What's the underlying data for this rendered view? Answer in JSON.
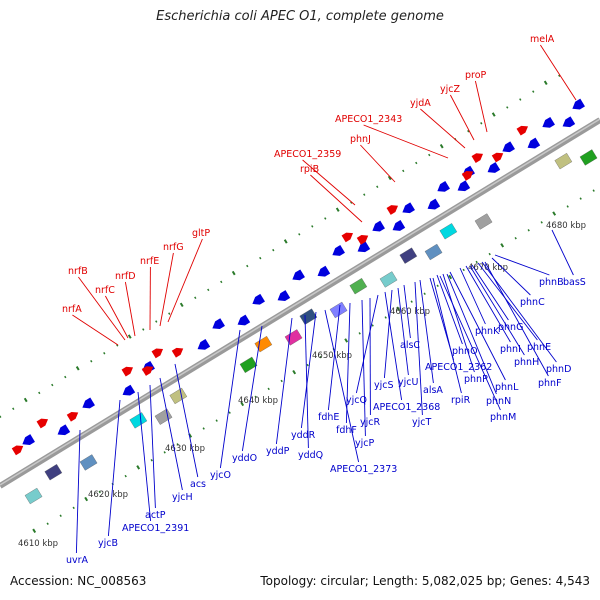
{
  "title": "Escherichia coli APEC O1, complete genome",
  "footer": {
    "accession": "Accession: NC_008563",
    "summary": "Topology: circular; Length: 5,082,025 bp; Genes: 4,543"
  },
  "colors": {
    "forward": "#e60000",
    "reverse": "#0000dd",
    "backbone": "#808080",
    "tick": "#2a7a2a",
    "red_label": "#e00000",
    "blue_label": "#0000cc"
  },
  "kbp_labels": [
    "4610 kbp",
    "4620 kbp",
    "4630 kbp",
    "4640 kbp",
    "4650 kbp",
    "4660 kbp",
    "4670 kbp",
    "4680 kbp"
  ],
  "red_genes": [
    "melA",
    "proP",
    "yjcZ",
    "yjdA",
    "APECO1_2343",
    "phnJ",
    "APECO1_2359",
    "rpiB",
    "gltP",
    "nrfG",
    "nrfE",
    "nrfD",
    "nrfB",
    "nrfC",
    "nrfA"
  ],
  "blue_genes": [
    "basS",
    "phnB",
    "phnC",
    "phnK",
    "phnG",
    "phnE",
    "phnI",
    "phnD",
    "phnH",
    "phnF",
    "phnL",
    "phnO",
    "APECO1_2362",
    "phnP",
    "phnN",
    "phnM",
    "alsC",
    "alsA",
    "rpiR",
    "yjcU",
    "yjcS",
    "yjcT",
    "yjcQ",
    "APECO1_2368",
    "yjcR",
    "fdhE",
    "yjcP",
    "fdhF",
    "yddR",
    "yddQ",
    "APECO1_2373",
    "yddP",
    "yddO",
    "yjcO",
    "acs",
    "yjcH",
    "actP",
    "APECO1_2391",
    "yjcB",
    "uvrA"
  ]
}
